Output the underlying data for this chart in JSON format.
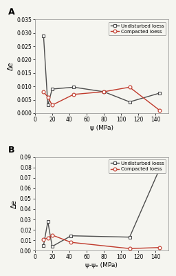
{
  "panel_A": {
    "xlabel": "ψ (MPa)",
    "ylabel": "Δe",
    "xlim": [
      0,
      155
    ],
    "ylim": [
      0.0,
      0.035
    ],
    "xticks": [
      0,
      20,
      40,
      60,
      80,
      100,
      120,
      140
    ],
    "yticks": [
      0.0,
      0.005,
      0.01,
      0.015,
      0.02,
      0.025,
      0.03,
      0.035
    ],
    "undisturbed_x": [
      10,
      15,
      20,
      45,
      80,
      110,
      145
    ],
    "undisturbed_y": [
      0.029,
      0.003,
      0.009,
      0.0097,
      0.008,
      0.0042,
      0.0075
    ],
    "compacted_x": [
      10,
      15,
      20,
      45,
      80,
      110,
      145
    ],
    "compacted_y": [
      0.008,
      0.006,
      0.003,
      0.007,
      0.008,
      0.0097,
      0.001
    ],
    "panel_label": "A"
  },
  "panel_B": {
    "xlabel": "ψ-ψₑ (MPa)",
    "ylabel": "Δe",
    "xlim": [
      0,
      155
    ],
    "ylim": [
      0.0,
      0.09
    ],
    "xticks": [
      0,
      20,
      40,
      60,
      80,
      100,
      120,
      140
    ],
    "yticks": [
      0.0,
      0.01,
      0.02,
      0.03,
      0.04,
      0.05,
      0.06,
      0.07,
      0.08,
      0.09
    ],
    "undisturbed_x": [
      10,
      15,
      20,
      42,
      110,
      145
    ],
    "undisturbed_y": [
      0.005,
      0.028,
      0.004,
      0.0143,
      0.013,
      0.079
    ],
    "compacted_x": [
      10,
      15,
      20,
      42,
      110,
      145
    ],
    "compacted_y": [
      0.011,
      0.012,
      0.015,
      0.008,
      0.002,
      0.003
    ],
    "panel_label": "B"
  },
  "undisturbed_color": "#4d4d4d",
  "compacted_color": "#c0392b",
  "legend_undisturbed": "Undisturbed loess",
  "legend_compacted": "Compacted loess",
  "marker_undisturbed": "s",
  "marker_compacted": "o",
  "linewidth": 1.0,
  "markersize": 3.5,
  "bg_color": "#f5f5f0"
}
